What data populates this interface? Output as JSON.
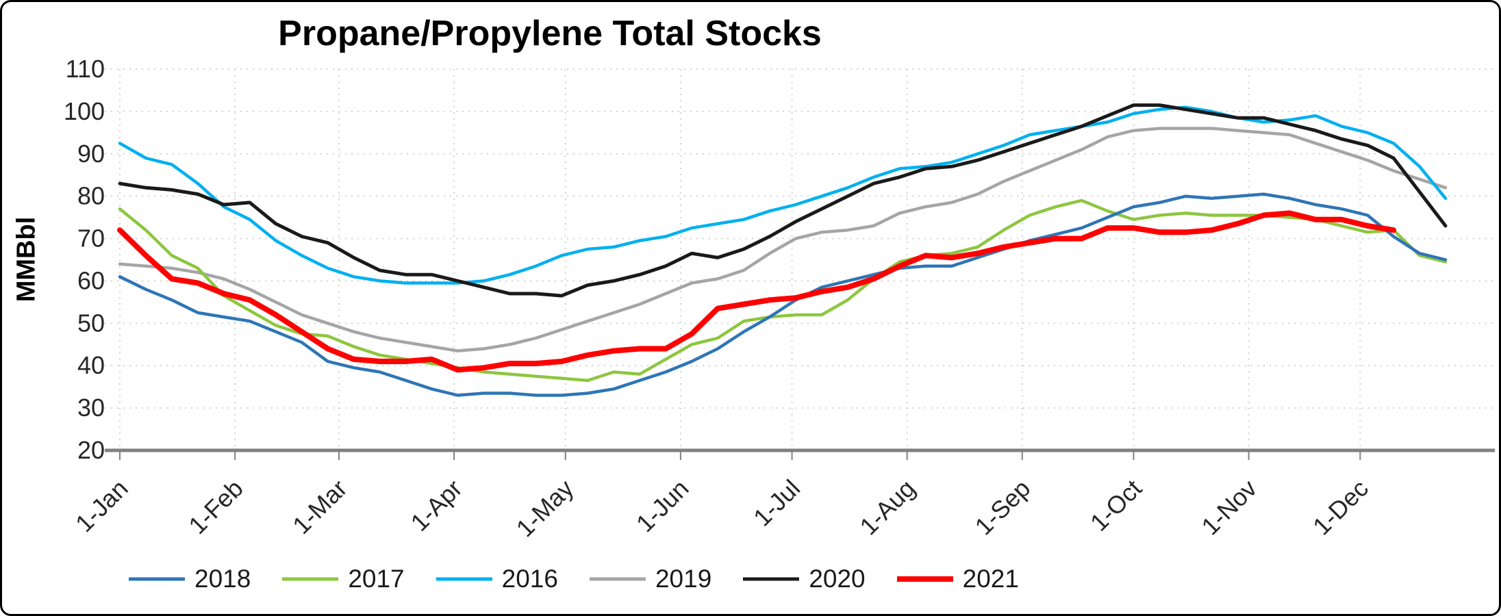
{
  "title": "Propane/Propylene Total Stocks",
  "y_axis_label": "MMBbl",
  "colors": {
    "grid": "#d2d2d2",
    "axis": "#808080",
    "tick_text": "#262626",
    "title_text": "#000000"
  },
  "chart_data": {
    "type": "line",
    "title": "Propane/Propylene Total Stocks",
    "xlabel": "",
    "ylabel": "MMBbl",
    "ylim": [
      20,
      110
    ],
    "y_ticks": [
      20,
      30,
      40,
      50,
      60,
      70,
      80,
      90,
      100,
      110
    ],
    "grid": true,
    "legend_position": "bottom",
    "x_unit": "weekly points, x = day of year (1 + 7*i), domain 1..365",
    "x_domain": [
      1,
      365
    ],
    "x_ticks": [
      {
        "day": 1,
        "label": "1-Jan"
      },
      {
        "day": 32,
        "label": "1-Feb"
      },
      {
        "day": 60,
        "label": "1-Mar"
      },
      {
        "day": 91,
        "label": "1-Apr"
      },
      {
        "day": 121,
        "label": "1-May"
      },
      {
        "day": 152,
        "label": "1-Jun"
      },
      {
        "day": 182,
        "label": "1-Jul"
      },
      {
        "day": 213,
        "label": "1-Aug"
      },
      {
        "day": 244,
        "label": "1-Sep"
      },
      {
        "day": 274,
        "label": "1-Oct"
      },
      {
        "day": 305,
        "label": "1-Nov"
      },
      {
        "day": 335,
        "label": "1-Dec"
      }
    ],
    "draw_order": [
      "2019",
      "2016",
      "2017",
      "2018",
      "2020",
      "2021"
    ],
    "series": [
      {
        "name": "2018",
        "color": "#2E75B6",
        "line_width": 4.5,
        "values": [
          61,
          58,
          55.5,
          52.5,
          51.5,
          50.5,
          48,
          45.5,
          41,
          39.5,
          38.5,
          36.5,
          34.5,
          33,
          33.5,
          33.5,
          33,
          33,
          33.5,
          34.5,
          36.5,
          38.5,
          41,
          44,
          48,
          51.5,
          55.5,
          58.5,
          60,
          61.5,
          63,
          63.5,
          63.5,
          65.5,
          67.5,
          69.5,
          71,
          72.5,
          75,
          77.5,
          78.5,
          80,
          79.5,
          80,
          80.5,
          79.5,
          78,
          77,
          75.5,
          70.5,
          66.5,
          65
        ]
      },
      {
        "name": "2017",
        "color": "#8DC63F",
        "line_width": 4.5,
        "values": [
          77,
          72,
          66,
          63,
          56.5,
          53,
          49.5,
          47.5,
          47,
          44.5,
          42.5,
          41.5,
          40.5,
          39.5,
          38.5,
          38,
          37.5,
          37,
          36.5,
          38.5,
          38,
          41.5,
          45,
          46.5,
          50.5,
          51.5,
          52,
          52,
          55.5,
          60.5,
          64.5,
          66,
          66.5,
          68,
          72,
          75.5,
          77.5,
          79,
          76.5,
          74.5,
          75.5,
          76,
          75.5,
          75.5,
          75.5,
          75,
          74.5,
          73,
          71.5,
          72,
          66,
          64.5
        ]
      },
      {
        "name": "2016",
        "color": "#00B0F0",
        "line_width": 4.5,
        "values": [
          92.5,
          89,
          87.5,
          83,
          77.5,
          74.5,
          69.5,
          66,
          63,
          61,
          60,
          59.5,
          59.5,
          59.5,
          60,
          61.5,
          63.5,
          66,
          67.5,
          68,
          69.5,
          70.5,
          72.5,
          73.5,
          74.5,
          76.5,
          78,
          80,
          82,
          84.5,
          86.5,
          87,
          88,
          90,
          92,
          94.5,
          95.5,
          96.5,
          97.5,
          99.5,
          100.5,
          101,
          100,
          98.5,
          97.5,
          98,
          99,
          96.5,
          95,
          92.5,
          87,
          79.5
        ]
      },
      {
        "name": "2019",
        "color": "#A5A5A5",
        "line_width": 4.5,
        "values": [
          64,
          63.5,
          63,
          62,
          60.5,
          58,
          55,
          52,
          50,
          48,
          46.5,
          45.5,
          44.5,
          43.5,
          44,
          45,
          46.5,
          48.5,
          50.5,
          52.5,
          54.5,
          57,
          59.5,
          60.5,
          62.5,
          66.5,
          70,
          71.5,
          72,
          73,
          76,
          77.5,
          78.5,
          80.5,
          83.5,
          86,
          88.5,
          91,
          94,
          95.5,
          96,
          96,
          96,
          95.5,
          95,
          94.5,
          92.5,
          90.5,
          88.5,
          86,
          84,
          82
        ]
      },
      {
        "name": "2020",
        "color": "#1A1A1A",
        "line_width": 5,
        "values": [
          83,
          82,
          81.5,
          80.5,
          78,
          78.5,
          73.5,
          70.5,
          69,
          65.5,
          62.5,
          61.5,
          61.5,
          60,
          58.5,
          57,
          57,
          56.5,
          59,
          60,
          61.5,
          63.5,
          66.5,
          65.5,
          67.5,
          70.5,
          74,
          77,
          80,
          83,
          84.5,
          86.5,
          87,
          88.5,
          90.5,
          92.5,
          94.5,
          96.5,
          99,
          101.5,
          101.5,
          100.5,
          99.5,
          98.5,
          98.5,
          97,
          95.5,
          93.5,
          92,
          89,
          81,
          73
        ]
      },
      {
        "name": "2021",
        "color": "#FF0000",
        "line_width": 8,
        "values": [
          72,
          66,
          60.5,
          59.5,
          57,
          55.5,
          52,
          48,
          44,
          41.5,
          41,
          41,
          41.5,
          39,
          39.5,
          40.5,
          40.5,
          41,
          42.5,
          43.5,
          44,
          44,
          47.5,
          53.5,
          54.5,
          55.5,
          56,
          57.5,
          58.5,
          60.5,
          63.5,
          66,
          65.5,
          66.5,
          68,
          69,
          70,
          70,
          72.5,
          72.5,
          71.5,
          71.5,
          72,
          73.5,
          75.5,
          76,
          74.5,
          74.5,
          73,
          72
        ]
      }
    ],
    "legend": [
      "2018",
      "2017",
      "2016",
      "2019",
      "2020",
      "2021"
    ]
  }
}
